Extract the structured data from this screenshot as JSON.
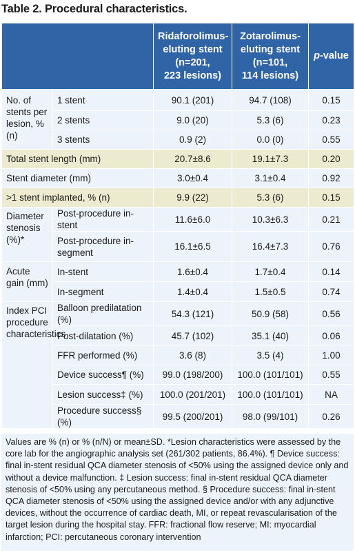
{
  "title": "Table 2. Procedural characteristics.",
  "headers": {
    "ridaforolimus_line1": "Ridaforolimus-",
    "ridaforolimus_line2": "eluting stent",
    "ridaforolimus_line3": "(n=201,",
    "ridaforolimus_line4": "223 lesions)",
    "zotarolimus_line1": "Zotarolimus-",
    "zotarolimus_line2": "eluting stent",
    "zotarolimus_line3": "(n=101,",
    "zotarolimus_line4": "114 lesions)",
    "pvalue_italic": "p",
    "pvalue_rest": "-value"
  },
  "rows": {
    "stents_per_lesion": {
      "label": "No. of stents per lesion, % (n)",
      "r1": {
        "sub": "1 stent",
        "rid": "90.1 (201)",
        "zot": "94.7 (108)",
        "p": "0.15"
      },
      "r2": {
        "sub": "2 stents",
        "rid": "9.0 (20)",
        "zot": "5.3 (6)",
        "p": "0.23"
      },
      "r3": {
        "sub": "3 stents",
        "rid": "0.9 (2)",
        "zot": "0.0 (0)",
        "p": "0.55"
      }
    },
    "total_length": {
      "label": "Total stent length (mm)",
      "rid": "20.7±8.6",
      "zot": "19.1±7.3",
      "p": "0.20"
    },
    "diameter": {
      "label": "Stent diameter (mm)",
      "rid": "3.0±0.4",
      "zot": "3.1±0.4",
      "p": "0.92"
    },
    "more_than_one": {
      "label": ">1 stent implanted, % (n)",
      "rid": "9.9 (22)",
      "zot": "5.3 (6)",
      "p": "0.15"
    },
    "diameter_stenosis": {
      "label": "Diameter stenosis (%)*",
      "r1": {
        "sub": "Post-procedure in-stent",
        "rid": "11.6±6.0",
        "zot": "10.3±6.3",
        "p": "0.21"
      },
      "r2": {
        "sub": "Post-procedure in-segment",
        "rid": "16.1±6.5",
        "zot": "16.4±7.3",
        "p": "0.76"
      }
    },
    "acute_gain": {
      "label": "Acute gain (mm)",
      "r1": {
        "sub": "In-stent",
        "rid": "1.6±0.4",
        "zot": "1.7±0.4",
        "p": "0.14"
      },
      "r2": {
        "sub": "In-segment",
        "rid": "1.4±0.4",
        "zot": "1.5±0.5",
        "p": "0.74"
      }
    },
    "index_pci": {
      "label": "Index PCI procedure characteristics",
      "r1": {
        "sub": "Balloon predilatation (%)",
        "rid": "54.3 (121)",
        "zot": "50.9 (58)",
        "p": "0.56"
      },
      "r2": {
        "sub": "Post-dilatation (%)",
        "rid": "45.7 (102)",
        "zot": "35.1 (40)",
        "p": "0.06"
      },
      "r3": {
        "sub": "FFR performed (%)",
        "rid": "3.6 (8)",
        "zot": "3.5 (4)",
        "p": "1.00"
      },
      "r4": {
        "sub": "Device success¶ (%)",
        "rid": "99.0 (198/200)",
        "zot": "100.0 (101/101)",
        "p": "0.55"
      },
      "r5": {
        "sub": "Lesion success‡ (%)",
        "rid": "100.0 (201/201)",
        "zot": "100.0 (101/101)",
        "p": "NA"
      },
      "r6": {
        "sub": "Procedure success§ (%)",
        "rid": "99.5 (200/201)",
        "zot": "98.0 (99/101)",
        "p": "0.26"
      }
    }
  },
  "footnote": "Values are % (n) or % (n/N) or mean±SD. *Lesion characteristics were assessed by the core lab for the angiographic analysis set (261/302 patients, 86.4%). ¶ Device success: final in-stent residual QCA diameter stenosis of <50% using the assigned device only and without a device malfunction. ‡ Lesion success: final in-stent residual QCA diameter stenosis of <50% using any percutaneous method. § Procedure success: final in-stent QCA diameter stenosis of <50% using the assigned device and/or with any adjunctive devices, without the occurrence of cardiac death, MI, or repeat revascularisation of the target lesion during the hospital stay. FFR: fractional flow reserve; MI: myocardial infarction; PCI: percutaneous coronary intervention"
}
